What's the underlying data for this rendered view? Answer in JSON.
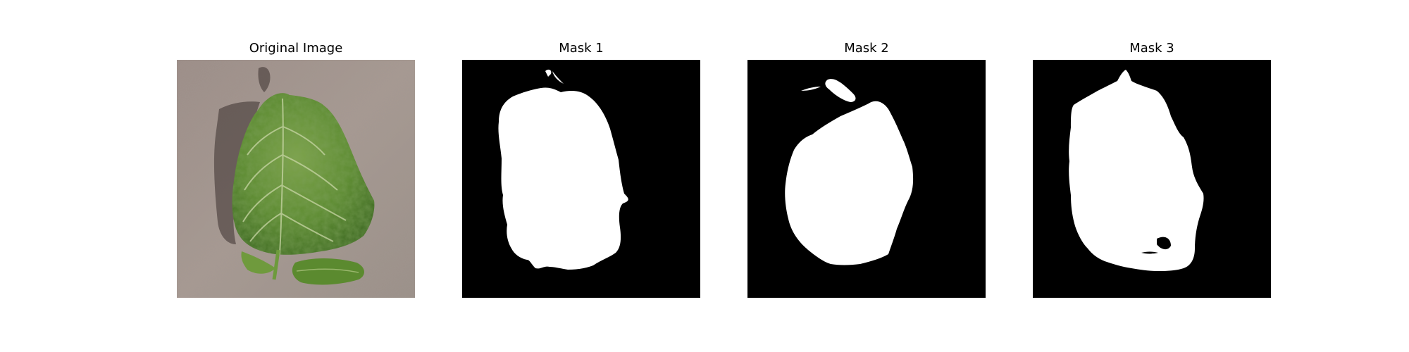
{
  "figure": {
    "panels": [
      {
        "title": "Original Image",
        "kind": "photo",
        "subject": "leaf-photo"
      },
      {
        "title": "Mask 1",
        "kind": "mask",
        "subject": "leaf-mask"
      },
      {
        "title": "Mask 2",
        "kind": "mask",
        "subject": "leaf-mask"
      },
      {
        "title": "Mask 3",
        "kind": "mask",
        "subject": "leaf-mask"
      }
    ]
  },
  "colors": {
    "mask_background": "#000000",
    "mask_foreground": "#ffffff",
    "leaf_green": "#5d8a33",
    "surface_tan": "#a1938b"
  }
}
